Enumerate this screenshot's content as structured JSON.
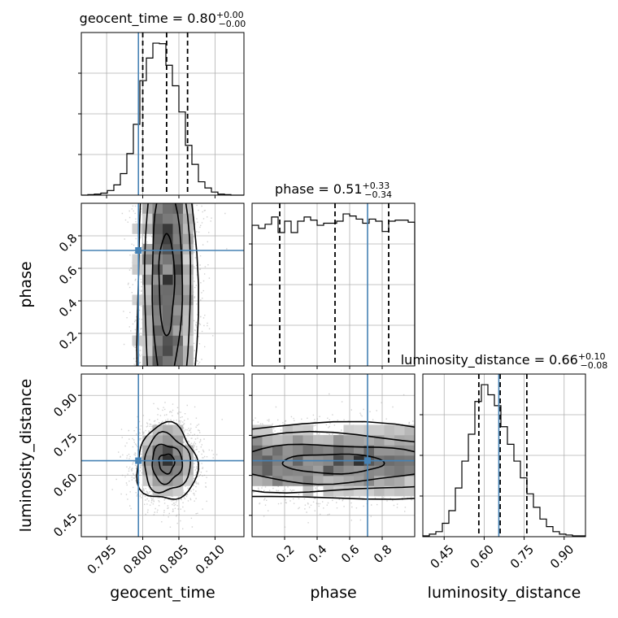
{
  "chart_data": {
    "type": "corner",
    "parameters": [
      "geocent_time",
      "phase",
      "luminosity_distance"
    ],
    "truths": {
      "geocent_time": 0.7994,
      "phase": 0.71,
      "luminosity_distance": 0.655
    },
    "titles": {
      "geocent_time": {
        "label": "geocent_time = 0.80",
        "plus": "+0.00",
        "minus": "−0.00"
      },
      "phase": {
        "label": "phase = 0.51",
        "plus": "+0.33",
        "minus": "−0.34"
      },
      "luminosity_distance": {
        "label": "luminosity_distance = 0.66",
        "plus": "+0.10",
        "minus": "−0.08"
      }
    },
    "axes": {
      "geocent_time": {
        "lim": [
          0.7915,
          0.814
        ],
        "ticks": [
          0.795,
          0.8,
          0.805,
          0.81
        ],
        "ticklabels": [
          "0.795",
          "0.800",
          "0.805",
          "0.810"
        ],
        "quantiles": [
          0.8,
          0.8033,
          0.8062
        ]
      },
      "phase": {
        "lim": [
          0.0,
          1.0
        ],
        "ticks": [
          0.2,
          0.4,
          0.6,
          0.8
        ],
        "ticklabels": [
          "0.2",
          "0.4",
          "0.6",
          "0.8"
        ],
        "quantiles": [
          0.17,
          0.51,
          0.84
        ]
      },
      "luminosity_distance": {
        "lim": [
          0.37,
          0.98
        ],
        "ticks": [
          0.45,
          0.6,
          0.75,
          0.9
        ],
        "ticklabels": [
          "0.45",
          "0.60",
          "0.75",
          "0.90"
        ],
        "quantiles": [
          0.58,
          0.66,
          0.76
        ]
      }
    },
    "histograms": {
      "geocent_time": {
        "range": [
          0.7915,
          0.814
        ],
        "counts": [
          0,
          1,
          2,
          4,
          9,
          20,
          42,
          81,
          138,
          223,
          267,
          296,
          295,
          253,
          213,
          162,
          97,
          60,
          26,
          14,
          6,
          2,
          1,
          0,
          0
        ]
      },
      "phase": {
        "range": [
          0.0,
          1.0
        ],
        "counts": [
          136,
          133,
          137,
          144,
          129,
          140,
          129,
          140,
          144,
          141,
          136,
          138,
          138,
          140,
          147,
          145,
          142,
          138,
          142,
          140,
          130,
          140,
          141,
          141,
          139
        ]
      },
      "luminosity_distance": {
        "range": [
          0.37,
          0.98
        ],
        "counts": [
          1,
          3,
          6,
          16,
          31,
          58,
          90,
          122,
          161,
          181,
          169,
          156,
          131,
          110,
          90,
          70,
          51,
          35,
          21,
          12,
          6,
          3,
          2,
          1,
          1
        ]
      }
    },
    "levels": [
      0.12,
      0.39,
      0.68,
      0.86
    ]
  }
}
